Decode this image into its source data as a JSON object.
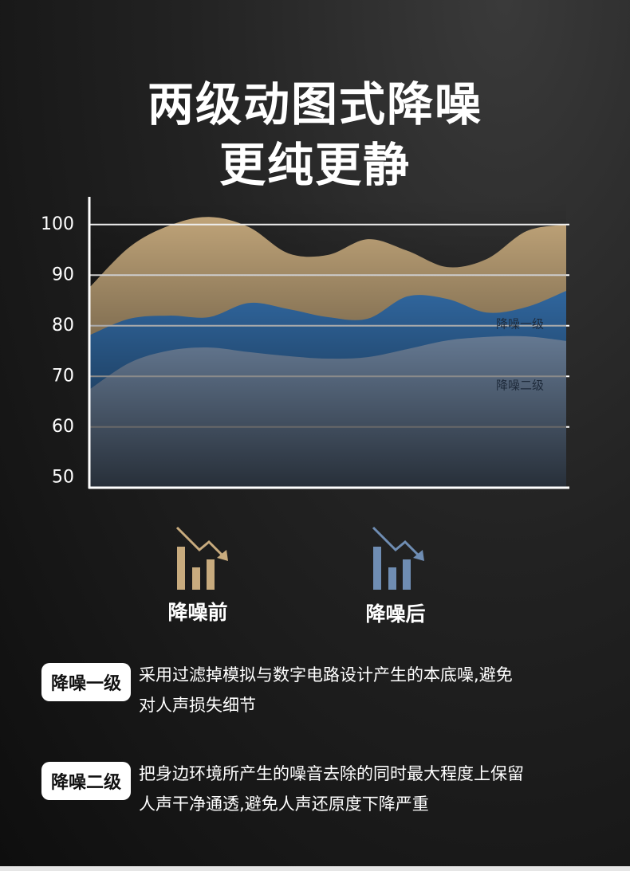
{
  "chart_data": {
    "type": "area",
    "title": "两级动图式降噪",
    "subtitle": "更纯更静",
    "categories": [
      null,
      null,
      null,
      null,
      null,
      null,
      null,
      null,
      null,
      null,
      null,
      null,
      null
    ],
    "series": [
      {
        "name": "降噪前",
        "color": "#c8ab7e",
        "values": [
          87.7,
          95.6,
          99.8,
          101.5,
          99.5,
          94.3,
          94,
          97.1,
          94.8,
          91.6,
          93.2,
          98.7,
          100
        ]
      },
      {
        "name": "降噪一级",
        "color": "#3f86cf",
        "values": [
          78.2,
          81.4,
          82,
          81.7,
          84.5,
          83.3,
          81.7,
          81.4,
          85.8,
          85.3,
          82.6,
          83.7,
          86.9
        ]
      },
      {
        "name": "降噪二级",
        "color": "#9cbbe2",
        "values": [
          67.5,
          72.7,
          75.1,
          75.7,
          74.8,
          74,
          73.5,
          73.8,
          75.4,
          77.1,
          77.8,
          77.9,
          77
        ]
      }
    ],
    "after_label": "降噪后",
    "after_color": "#6f8db3",
    "ylim": [
      48,
      105
    ],
    "yticks": [
      50,
      60,
      70,
      80,
      90,
      100
    ],
    "grid": true
  },
  "notes": [
    {
      "tag": "降噪一级",
      "lines": [
        "采用过滤掉模拟与数字电路设计产生的本底噪,避免",
        "对人声损失细节"
      ]
    },
    {
      "tag": "降噪二级",
      "lines": [
        "把身边环境所产生的噪音去除的同时最大程度上保留",
        "人声干净通透,避免人声还原度下降严重"
      ]
    }
  ]
}
